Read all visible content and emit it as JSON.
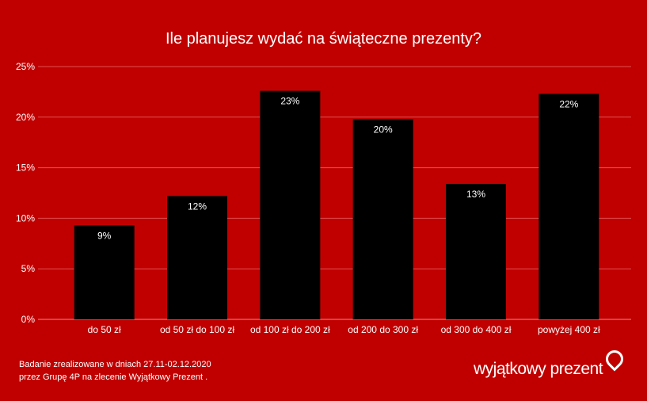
{
  "colors": {
    "background": "#c00000",
    "bars": "#000000",
    "gridlines": "#e05050",
    "text": "#ffffff"
  },
  "chart_data": {
    "type": "bar",
    "title": "Ile planujesz wydać na świąteczne prezenty?",
    "categories": [
      "do 50 zł",
      "od 50 zł do 100 zł",
      "od 100 zł do 200 zł",
      "od 200 do 300 zł",
      "od 300 do 400 zł",
      "powyżej 400 zł"
    ],
    "values": [
      9.3,
      12.2,
      22.6,
      19.8,
      13.4,
      22.3
    ],
    "data_labels": [
      "9%",
      "12%",
      "23%",
      "20%",
      "13%",
      "22%"
    ],
    "ylim": [
      0,
      25
    ],
    "yticks": [
      0,
      5,
      10,
      15,
      20,
      25
    ],
    "ytick_labels": [
      "0%",
      "5%",
      "10%",
      "15%",
      "20%",
      "25%"
    ],
    "grid": true,
    "xlabel": "",
    "ylabel": ""
  },
  "footer": {
    "line1": "Badanie zrealizowane w dniach 27.11-02.12.2020",
    "line2": "przez Grupę 4P na zlecenie Wyjątkowy Prezent ."
  },
  "logo": {
    "text": "wyjątkowy prezent",
    "icon": "map-pin-icon"
  }
}
